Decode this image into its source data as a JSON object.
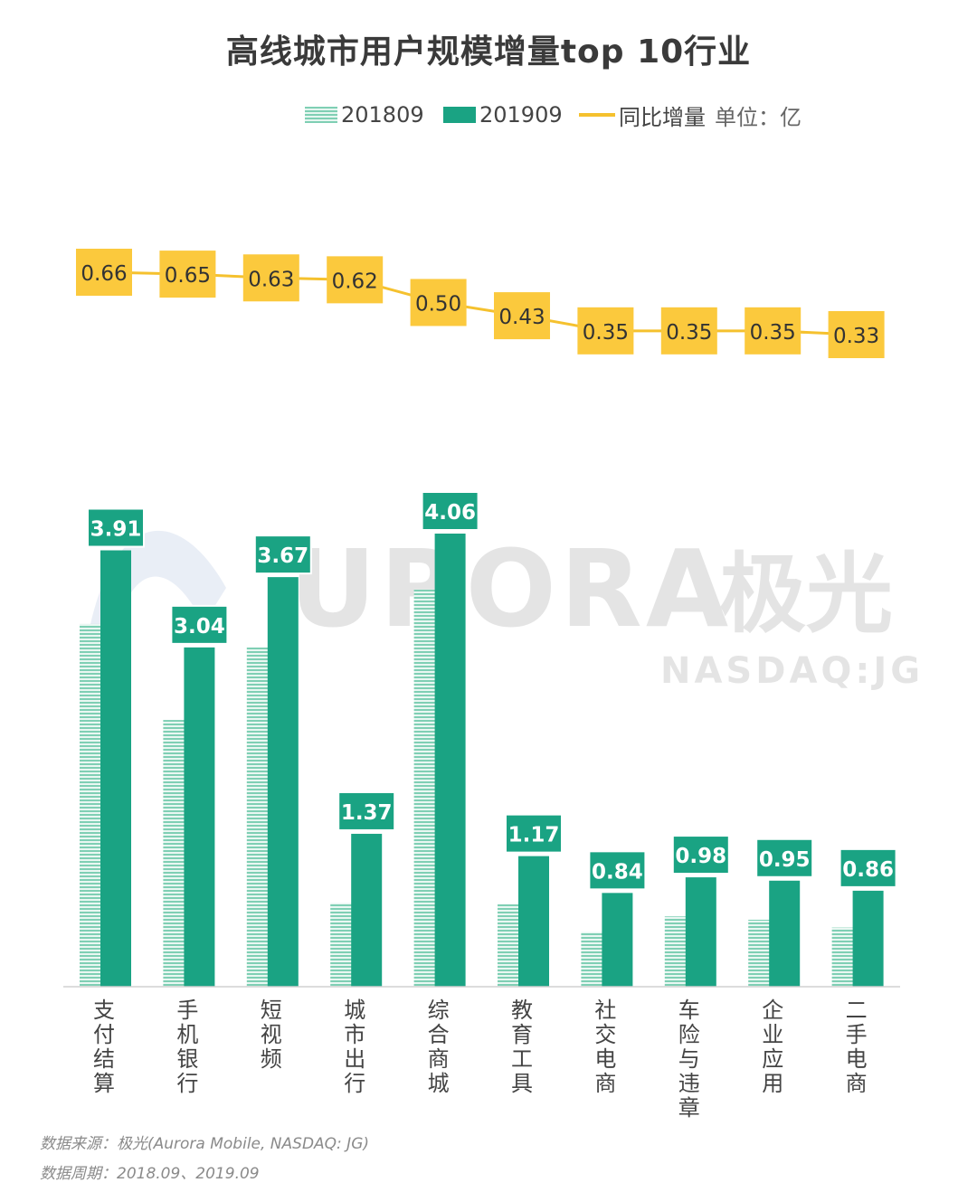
{
  "chart_data": {
    "type": "bar",
    "title": "高线城市用户规模增量top 10行业",
    "unit_label": "单位：亿",
    "categories": [
      "支付结算",
      "手机银行",
      "短视频",
      "城市出行",
      "综合商城",
      "教育工具",
      "社交电商",
      "车险与违章",
      "企业应用",
      "二手电商"
    ],
    "series": [
      {
        "name": "201809",
        "kind": "bar-hatched",
        "values": [
          3.25,
          2.39,
          3.04,
          0.75,
          3.56,
          0.74,
          0.49,
          0.63,
          0.6,
          0.53
        ]
      },
      {
        "name": "201909",
        "kind": "bar",
        "values": [
          3.91,
          3.04,
          3.67,
          1.37,
          4.06,
          1.17,
          0.84,
          0.98,
          0.95,
          0.86
        ]
      },
      {
        "name": "同比增量",
        "kind": "line",
        "values": [
          0.66,
          0.65,
          0.63,
          0.62,
          0.5,
          0.43,
          0.35,
          0.35,
          0.35,
          0.33
        ]
      }
    ],
    "bar_labels": [
      "3.91",
      "3.04",
      "3.67",
      "1.37",
      "4.06",
      "1.17",
      "0.84",
      "0.98",
      "0.95",
      "0.86"
    ],
    "line_labels": [
      "0.66",
      "0.65",
      "0.63",
      "0.62",
      "0.50",
      "0.43",
      "0.35",
      "0.35",
      "0.35",
      "0.33"
    ],
    "ylim": [
      0,
      4.06
    ],
    "line_ylim": [
      0.33,
      0.66
    ],
    "grid": false,
    "legend_position": "top-center",
    "colors": {
      "bar_2019": "#1aa383",
      "bar_2018": "#7fcfb4",
      "line": "#f5c12e",
      "line_label_bg": "#fbc93d",
      "bar_label_bg": "#1aa383"
    }
  },
  "watermark": {
    "logo_text": "URORA",
    "logo_cn": "极光",
    "sub": "NASDAQ:JG"
  },
  "footnotes": {
    "source": "数据来源：极光(Aurora Mobile, NASDAQ: JG)",
    "period": "数据周期：2018.09、2019.09"
  }
}
